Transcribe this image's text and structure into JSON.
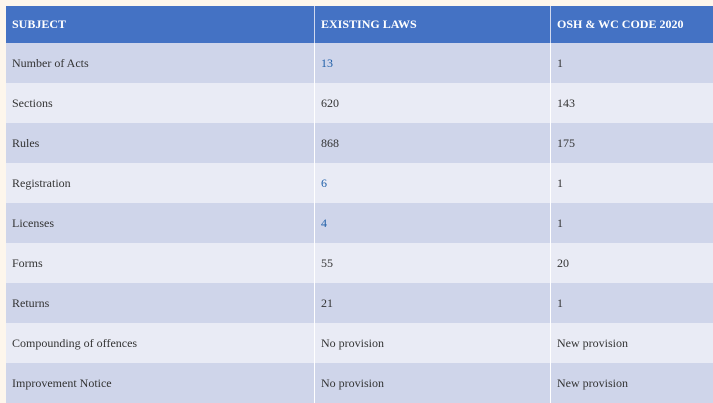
{
  "table": {
    "headers": [
      "SUBJECT",
      "EXISTING LAWS",
      "OSH & WC CODE 2020"
    ],
    "rows": [
      {
        "subject": "Number of Acts",
        "existing": "13",
        "code": "1",
        "existing_link": true
      },
      {
        "subject": "Sections",
        "existing": "620",
        "code": "143",
        "existing_link": false
      },
      {
        "subject": "Rules",
        "existing": "868",
        "code": "175",
        "existing_link": false
      },
      {
        "subject": "Registration",
        "existing": "6",
        "code": "1",
        "existing_link": true
      },
      {
        "subject": "Licenses",
        "existing": "4",
        "code": "1",
        "existing_link": true
      },
      {
        "subject": "Forms",
        "existing": "55",
        "code": "20",
        "existing_link": false
      },
      {
        "subject": "Returns",
        "existing": "21",
        "code": "1",
        "existing_link": false
      },
      {
        "subject": "Compounding of offences",
        "existing": "No provision",
        "code": "New provision",
        "existing_link": false
      },
      {
        "subject": "Improvement Notice",
        "existing": "No provision",
        "code": "New provision",
        "existing_link": false
      }
    ]
  },
  "colors": {
    "header_bg": "#4472c4",
    "row_odd": "#cfd5ea",
    "row_even": "#e9ebf5",
    "link": "#1f5fa8"
  }
}
